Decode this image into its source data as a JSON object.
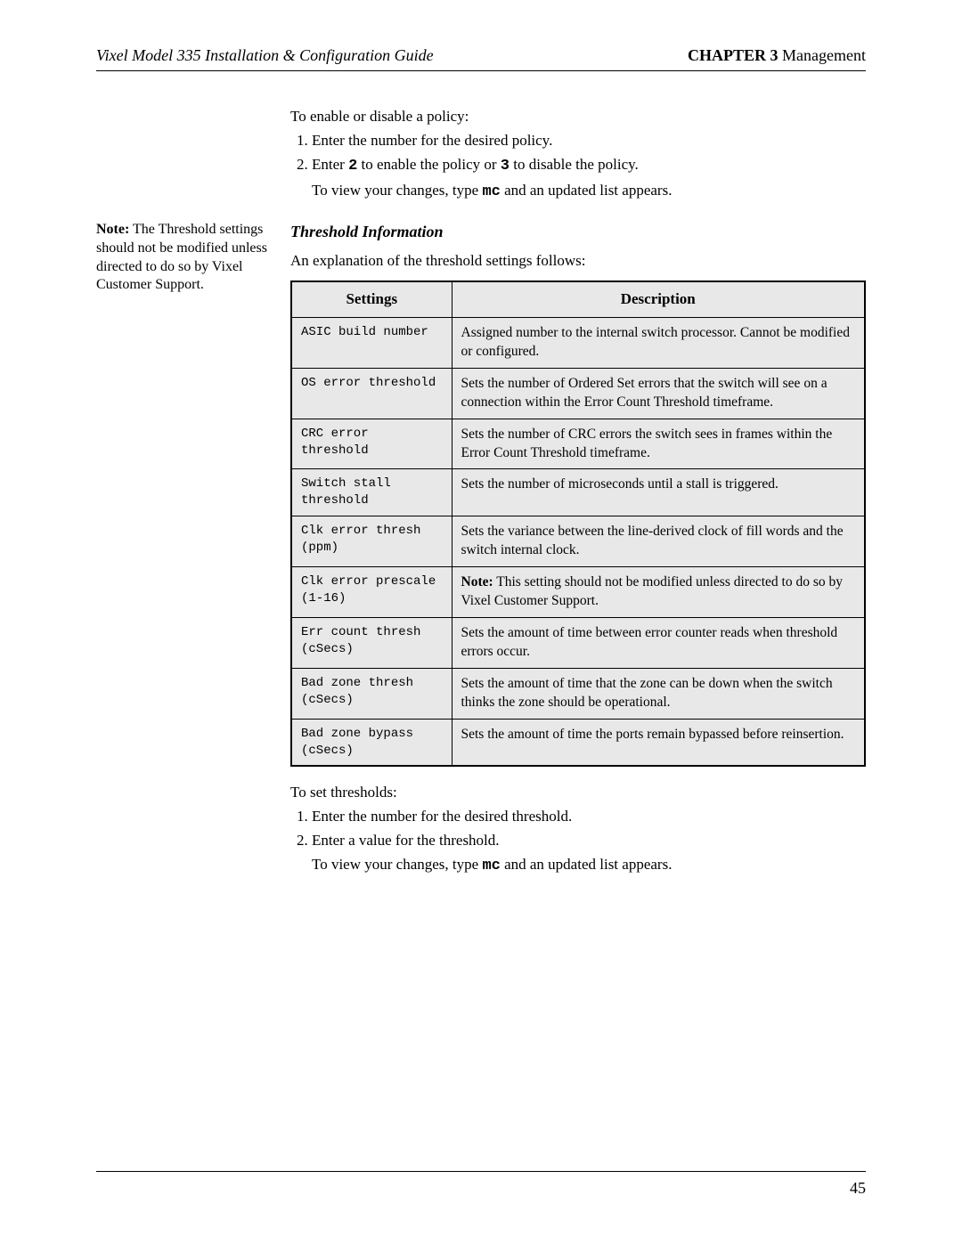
{
  "header": {
    "left": "Vixel Model 335 Installation & Configuration Guide",
    "chapter_label": "CHAPTER 3",
    "chapter_title": " Management"
  },
  "sidebar": {
    "note_label": "Note:",
    "note_text": " The Threshold settings should not be modified unless directed to do so by Vixel Customer Support."
  },
  "intro": {
    "p1": "To enable or disable a policy:",
    "li1": "Enter the number for the desired policy.",
    "li2_pre": "Enter ",
    "li2_code1": "2",
    "li2_mid": " to enable the policy or ",
    "li2_code2": "3",
    "li2_post": " to disable the policy.",
    "li2_sub_pre": "To view your changes, type ",
    "li2_sub_code": "mc",
    "li2_sub_post": " and an updated list appears."
  },
  "subheading": "Threshold Information",
  "explain": "An explanation of the threshold settings follows:",
  "table": {
    "col1": "Settings",
    "col2": "Description",
    "rows": [
      {
        "s": "ASIC build number",
        "d": "Assigned number to the internal switch processor. Cannot be modified or configured."
      },
      {
        "s": "OS error threshold",
        "d": "Sets the number of Ordered Set errors that the switch will see on a connection within the Error Count Threshold timeframe."
      },
      {
        "s": "CRC error threshold",
        "d": "Sets the number of CRC errors the switch sees in frames within the Error Count Threshold timeframe."
      },
      {
        "s": "Switch stall threshold",
        "d": "Sets the number of microseconds until a stall is triggered."
      },
      {
        "s": "Clk error thresh (ppm)",
        "d": "Sets the variance between the line-derived clock of fill words and the switch internal clock."
      },
      {
        "s": "Clk error prescale (1-16)",
        "d_note_label": "Note:",
        "d_note": " This setting should not be modified unless directed to do so by Vixel Customer Support."
      },
      {
        "s": "Err count thresh (cSecs)",
        "d": "Sets the amount of time between error counter reads when threshold errors occur."
      },
      {
        "s": "Bad zone thresh (cSecs)",
        "d": "Sets the amount of time that the zone can be down when the switch thinks the zone should be operational."
      },
      {
        "s": "Bad zone bypass (cSecs)",
        "d": "Sets the amount of time the ports remain bypassed before reinsertion."
      }
    ]
  },
  "outro": {
    "p1": "To set thresholds:",
    "li1": "Enter the number for the desired threshold.",
    "li2": "Enter a value for the threshold.",
    "sub_pre": "To view your changes, type ",
    "sub_code": "mc",
    "sub_post": " and an updated list appears."
  },
  "page_number": "45"
}
